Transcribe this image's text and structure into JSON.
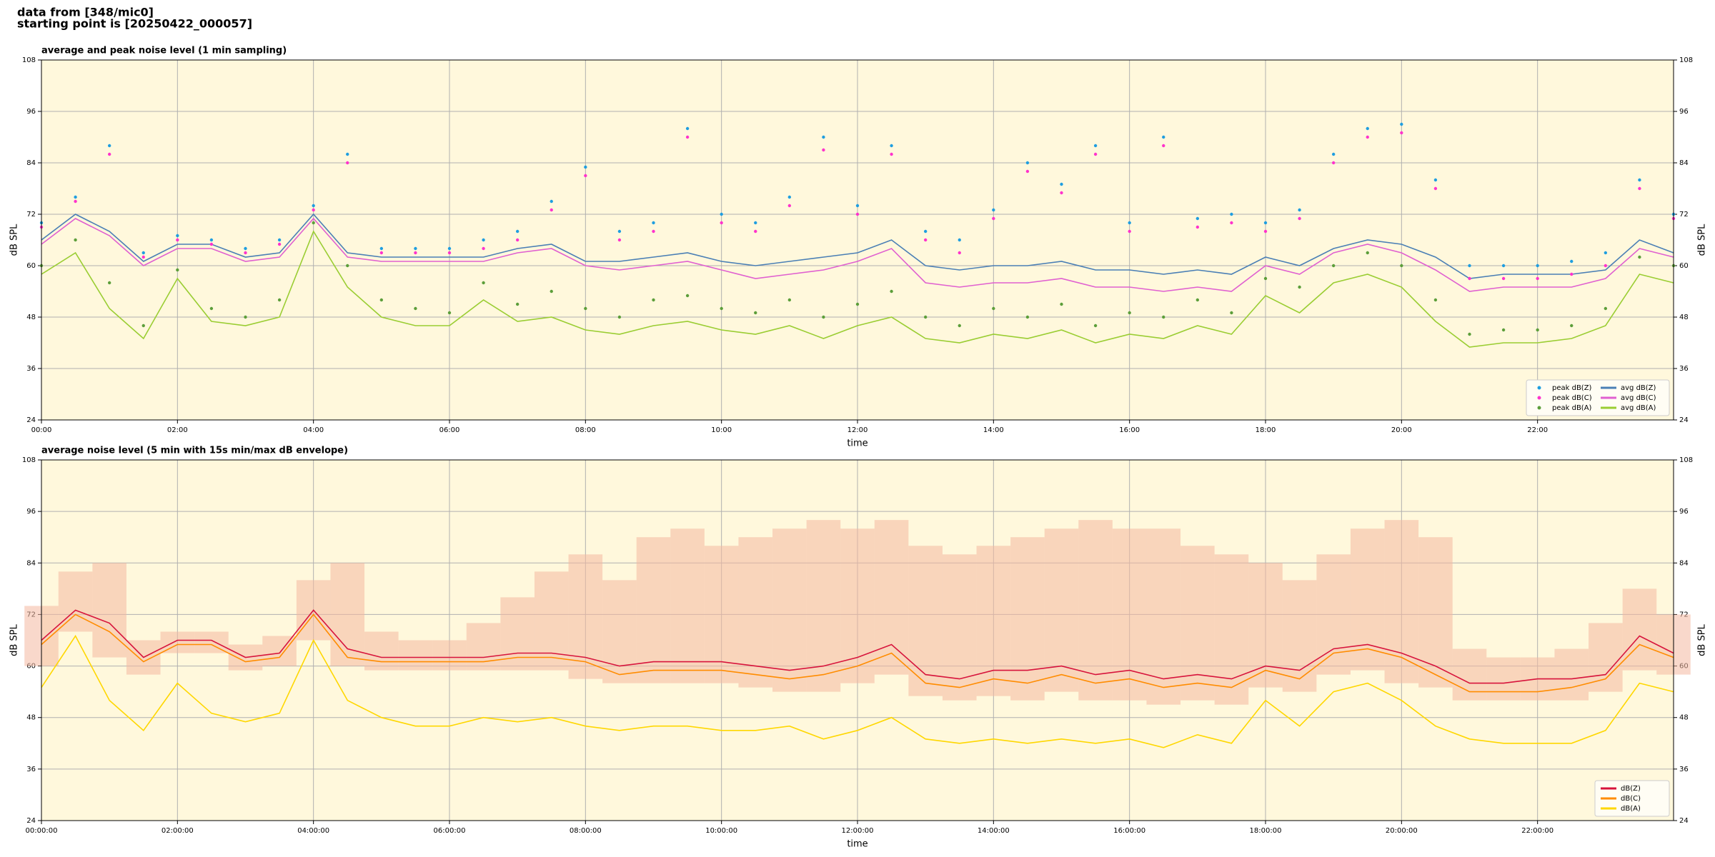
{
  "header": [
    "data from [348/mic0]",
    "starting point is [20250422_000057]"
  ],
  "chart_data": [
    {
      "type": "line",
      "title": "average and peak noise level (1 min sampling)",
      "xlabel": "time",
      "ylabel": "dB SPL",
      "x": [
        0,
        0.5,
        1,
        1.5,
        2,
        2.5,
        3,
        3.5,
        4,
        4.5,
        5,
        5.5,
        6,
        6.5,
        7,
        7.5,
        8,
        8.5,
        9,
        9.5,
        10,
        10.5,
        11,
        11.5,
        12,
        12.5,
        13,
        13.5,
        14,
        14.5,
        15,
        15.5,
        16,
        16.5,
        17,
        17.5,
        18,
        18.5,
        19,
        19.5,
        20,
        20.5,
        21,
        21.5,
        22,
        22.5,
        23,
        23.5,
        24
      ],
      "xlim": [
        0,
        24
      ],
      "xticks": [
        {
          "value": 0,
          "label": "00:00"
        },
        {
          "value": 2,
          "label": "02:00"
        },
        {
          "value": 4,
          "label": "04:00"
        },
        {
          "value": 6,
          "label": "06:00"
        },
        {
          "value": 8,
          "label": "08:00"
        },
        {
          "value": 10,
          "label": "10:00"
        },
        {
          "value": 12,
          "label": "12:00"
        },
        {
          "value": 14,
          "label": "14:00"
        },
        {
          "value": 16,
          "label": "16:00"
        },
        {
          "value": 18,
          "label": "18:00"
        },
        {
          "value": 20,
          "label": "20:00"
        },
        {
          "value": 22,
          "label": "22:00"
        }
      ],
      "ylim": [
        24,
        108
      ],
      "yticks": [
        24,
        36,
        48,
        60,
        72,
        84,
        96,
        108
      ],
      "grid": true,
      "legend": "lower right",
      "series": [
        {
          "name": "peak dB(Z)",
          "kind": "scatter",
          "color": "#1f9ee0",
          "values": [
            70,
            76,
            88,
            63,
            67,
            66,
            64,
            66,
            74,
            86,
            64,
            64,
            64,
            66,
            68,
            75,
            83,
            68,
            70,
            92,
            72,
            70,
            76,
            90,
            74,
            88,
            68,
            66,
            73,
            84,
            79,
            88,
            70,
            90,
            71,
            72,
            70,
            73,
            86,
            92,
            93,
            80,
            60,
            60,
            60,
            61,
            63,
            80,
            72
          ]
        },
        {
          "name": "peak dB(C)",
          "kind": "scatter",
          "color": "#ff33cc",
          "values": [
            69,
            75,
            86,
            62,
            66,
            65,
            63,
            65,
            73,
            84,
            63,
            63,
            63,
            64,
            66,
            73,
            81,
            66,
            68,
            90,
            70,
            68,
            74,
            87,
            72,
            86,
            66,
            63,
            71,
            82,
            77,
            86,
            68,
            88,
            69,
            70,
            68,
            71,
            84,
            90,
            91,
            78,
            57,
            57,
            57,
            58,
            60,
            78,
            71
          ]
        },
        {
          "name": "peak dB(A)",
          "kind": "scatter",
          "color": "#5c9e3a",
          "values": [
            60,
            66,
            56,
            46,
            59,
            50,
            48,
            52,
            70,
            60,
            52,
            50,
            49,
            56,
            51,
            54,
            50,
            48,
            52,
            53,
            50,
            49,
            52,
            48,
            51,
            54,
            48,
            46,
            50,
            48,
            51,
            46,
            49,
            48,
            52,
            49,
            57,
            55,
            60,
            63,
            60,
            52,
            44,
            45,
            45,
            46,
            50,
            62,
            60
          ]
        },
        {
          "name": "avg dB(Z)",
          "kind": "line",
          "color": "#4a7fb5",
          "values": [
            66,
            72,
            68,
            61,
            65,
            65,
            62,
            63,
            72,
            63,
            62,
            62,
            62,
            62,
            64,
            65,
            61,
            61,
            62,
            63,
            61,
            60,
            61,
            62,
            63,
            66,
            60,
            59,
            60,
            60,
            61,
            59,
            59,
            58,
            59,
            58,
            62,
            60,
            64,
            66,
            65,
            62,
            57,
            58,
            58,
            58,
            59,
            66,
            63
          ]
        },
        {
          "name": "avg dB(C)",
          "kind": "line",
          "color": "#e060d0",
          "values": [
            65,
            71,
            67,
            60,
            64,
            64,
            61,
            62,
            71,
            62,
            61,
            61,
            61,
            61,
            63,
            64,
            60,
            59,
            60,
            61,
            59,
            57,
            58,
            59,
            61,
            64,
            56,
            55,
            56,
            56,
            57,
            55,
            55,
            54,
            55,
            54,
            60,
            58,
            63,
            65,
            63,
            59,
            54,
            55,
            55,
            55,
            57,
            64,
            62
          ]
        },
        {
          "name": "avg dB(A)",
          "kind": "line",
          "color": "#9acd32",
          "values": [
            58,
            63,
            50,
            43,
            57,
            47,
            46,
            48,
            68,
            55,
            48,
            46,
            46,
            52,
            47,
            48,
            45,
            44,
            46,
            47,
            45,
            44,
            46,
            43,
            46,
            48,
            43,
            42,
            44,
            43,
            45,
            42,
            44,
            43,
            46,
            44,
            53,
            49,
            56,
            58,
            55,
            47,
            41,
            42,
            42,
            43,
            46,
            58,
            56
          ]
        }
      ]
    },
    {
      "type": "line",
      "title": "average noise level (5 min with 15s min/max dB envelope)",
      "xlabel": "time",
      "ylabel": "dB SPL",
      "x": [
        0,
        0.5,
        1,
        1.5,
        2,
        2.5,
        3,
        3.5,
        4,
        4.5,
        5,
        5.5,
        6,
        6.5,
        7,
        7.5,
        8,
        8.5,
        9,
        9.5,
        10,
        10.5,
        11,
        11.5,
        12,
        12.5,
        13,
        13.5,
        14,
        14.5,
        15,
        15.5,
        16,
        16.5,
        17,
        17.5,
        18,
        18.5,
        19,
        19.5,
        20,
        20.5,
        21,
        21.5,
        22,
        22.5,
        23,
        23.5,
        24
      ],
      "xlim": [
        0,
        24
      ],
      "xticks": [
        {
          "value": 0,
          "label": "00:00:00"
        },
        {
          "value": 2,
          "label": "02:00:00"
        },
        {
          "value": 4,
          "label": "04:00:00"
        },
        {
          "value": 6,
          "label": "06:00:00"
        },
        {
          "value": 8,
          "label": "08:00:00"
        },
        {
          "value": 10,
          "label": "10:00:00"
        },
        {
          "value": 12,
          "label": "12:00:00"
        },
        {
          "value": 14,
          "label": "14:00:00"
        },
        {
          "value": 16,
          "label": "16:00:00"
        },
        {
          "value": 18,
          "label": "18:00:00"
        },
        {
          "value": 20,
          "label": "20:00:00"
        },
        {
          "value": 22,
          "label": "22:00:00"
        }
      ],
      "ylim": [
        24,
        108
      ],
      "yticks": [
        24,
        36,
        48,
        60,
        72,
        84,
        96,
        108
      ],
      "grid": true,
      "legend": "lower right",
      "envelope": {
        "color": "#f4b8a0",
        "max": [
          74,
          82,
          84,
          66,
          68,
          68,
          65,
          67,
          80,
          84,
          68,
          66,
          66,
          70,
          76,
          82,
          86,
          80,
          90,
          92,
          88,
          90,
          92,
          94,
          92,
          94,
          88,
          86,
          88,
          90,
          92,
          94,
          92,
          92,
          88,
          86,
          84,
          80,
          86,
          92,
          94,
          90,
          64,
          62,
          62,
          64,
          70,
          78,
          72
        ],
        "min": [
          60,
          68,
          62,
          58,
          63,
          63,
          59,
          60,
          66,
          60,
          59,
          59,
          59,
          59,
          59,
          59,
          57,
          56,
          56,
          56,
          56,
          55,
          54,
          54,
          56,
          58,
          53,
          52,
          53,
          52,
          54,
          52,
          52,
          51,
          52,
          51,
          55,
          54,
          58,
          59,
          56,
          55,
          52,
          52,
          52,
          52,
          54,
          59,
          58
        ]
      },
      "series": [
        {
          "name": "dB(Z)",
          "kind": "line",
          "color": "#d7143c",
          "values": [
            66,
            73,
            70,
            62,
            66,
            66,
            62,
            63,
            73,
            64,
            62,
            62,
            62,
            62,
            63,
            63,
            62,
            60,
            61,
            61,
            61,
            60,
            59,
            60,
            62,
            65,
            58,
            57,
            59,
            59,
            60,
            58,
            59,
            57,
            58,
            57,
            60,
            59,
            64,
            65,
            63,
            60,
            56,
            56,
            57,
            57,
            58,
            67,
            63
          ]
        },
        {
          "name": "dB(C)",
          "kind": "line",
          "color": "#ff8c00",
          "values": [
            65,
            72,
            68,
            61,
            65,
            65,
            61,
            62,
            72,
            62,
            61,
            61,
            61,
            61,
            62,
            62,
            61,
            58,
            59,
            59,
            59,
            58,
            57,
            58,
            60,
            63,
            56,
            55,
            57,
            56,
            58,
            56,
            57,
            55,
            56,
            55,
            59,
            57,
            63,
            64,
            62,
            58,
            54,
            54,
            54,
            55,
            57,
            65,
            62
          ]
        },
        {
          "name": "dB(A)",
          "kind": "line",
          "color": "#ffd700",
          "values": [
            55,
            67,
            52,
            45,
            56,
            49,
            47,
            49,
            66,
            52,
            48,
            46,
            46,
            48,
            47,
            48,
            46,
            45,
            46,
            46,
            45,
            45,
            46,
            43,
            45,
            48,
            43,
            42,
            43,
            42,
            43,
            42,
            43,
            41,
            44,
            42,
            52,
            46,
            54,
            56,
            52,
            46,
            43,
            42,
            42,
            42,
            45,
            56,
            54
          ]
        }
      ]
    }
  ]
}
